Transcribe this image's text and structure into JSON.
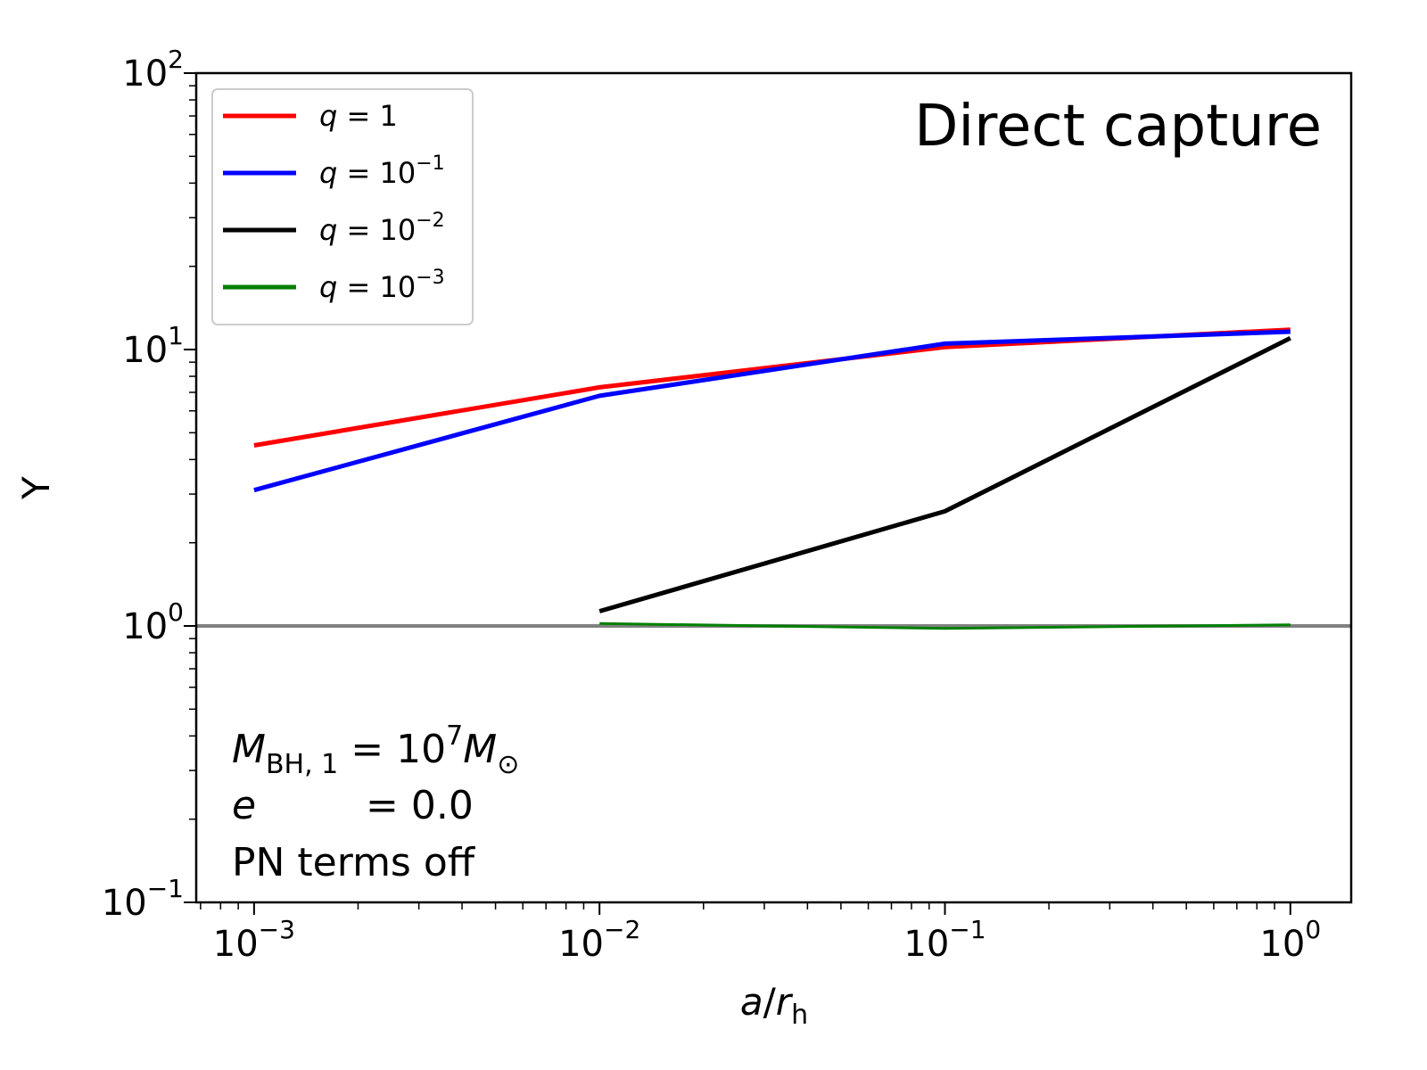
{
  "chart_data": {
    "type": "line",
    "title": "Direct capture",
    "xlabel": "a/r_h",
    "ylabel": "Y",
    "x_scale": "log",
    "y_scale": "log",
    "xlim": [
      0.00068,
      1.5
    ],
    "ylim": [
      0.1,
      100
    ],
    "x_ticks": [
      {
        "base": "10",
        "exp": "−3",
        "value": 0.001
      },
      {
        "base": "10",
        "exp": "−2",
        "value": 0.01
      },
      {
        "base": "10",
        "exp": "−1",
        "value": 0.1
      },
      {
        "base": "10",
        "exp": "0",
        "value": 1
      }
    ],
    "y_ticks": [
      {
        "base": "10",
        "exp": "−1",
        "value": 0.1
      },
      {
        "base": "10",
        "exp": "0",
        "value": 1
      },
      {
        "base": "10",
        "exp": "1",
        "value": 10
      },
      {
        "base": "10",
        "exp": "2",
        "value": 100
      }
    ],
    "reference_line": {
      "y": 1.0,
      "color": "#808080"
    },
    "legend": {
      "placement": "top-left"
    },
    "series": [
      {
        "name": "q = 1",
        "label_base": "q = 1",
        "label_exp": "",
        "color": "#ff0000",
        "x": [
          0.001,
          0.01,
          0.1,
          1.0
        ],
        "y": [
          4.5,
          7.3,
          10.2,
          11.8
        ]
      },
      {
        "name": "q = 10^-1",
        "label_base": "q = 10",
        "label_exp": "−1",
        "color": "#0000ff",
        "x": [
          0.001,
          0.01,
          0.1,
          1.0
        ],
        "y": [
          3.1,
          6.8,
          10.5,
          11.6
        ]
      },
      {
        "name": "q = 10^-2",
        "label_base": "q = 10",
        "label_exp": "−2",
        "color": "#000000",
        "x": [
          0.01,
          0.1,
          1.0
        ],
        "y": [
          1.13,
          2.6,
          11.0
        ]
      },
      {
        "name": "q = 10^-3",
        "label_base": "q = 10",
        "label_exp": "−3",
        "color": "#008000",
        "x": [
          0.01,
          0.1,
          1.0
        ],
        "y": [
          1.02,
          0.98,
          1.01
        ]
      }
    ],
    "annotations": {
      "mass_line": {
        "lhs": "M",
        "lhs_sub": "BH, 1",
        "rhs": "= 10",
        "rhs_exp": "7",
        "rhs_tail": "M",
        "rhs_tail_sub": "⊙"
      },
      "ecc_line": {
        "lhs": "e",
        "rhs": "= 0.0"
      },
      "pn_line": "PN terms off"
    }
  }
}
